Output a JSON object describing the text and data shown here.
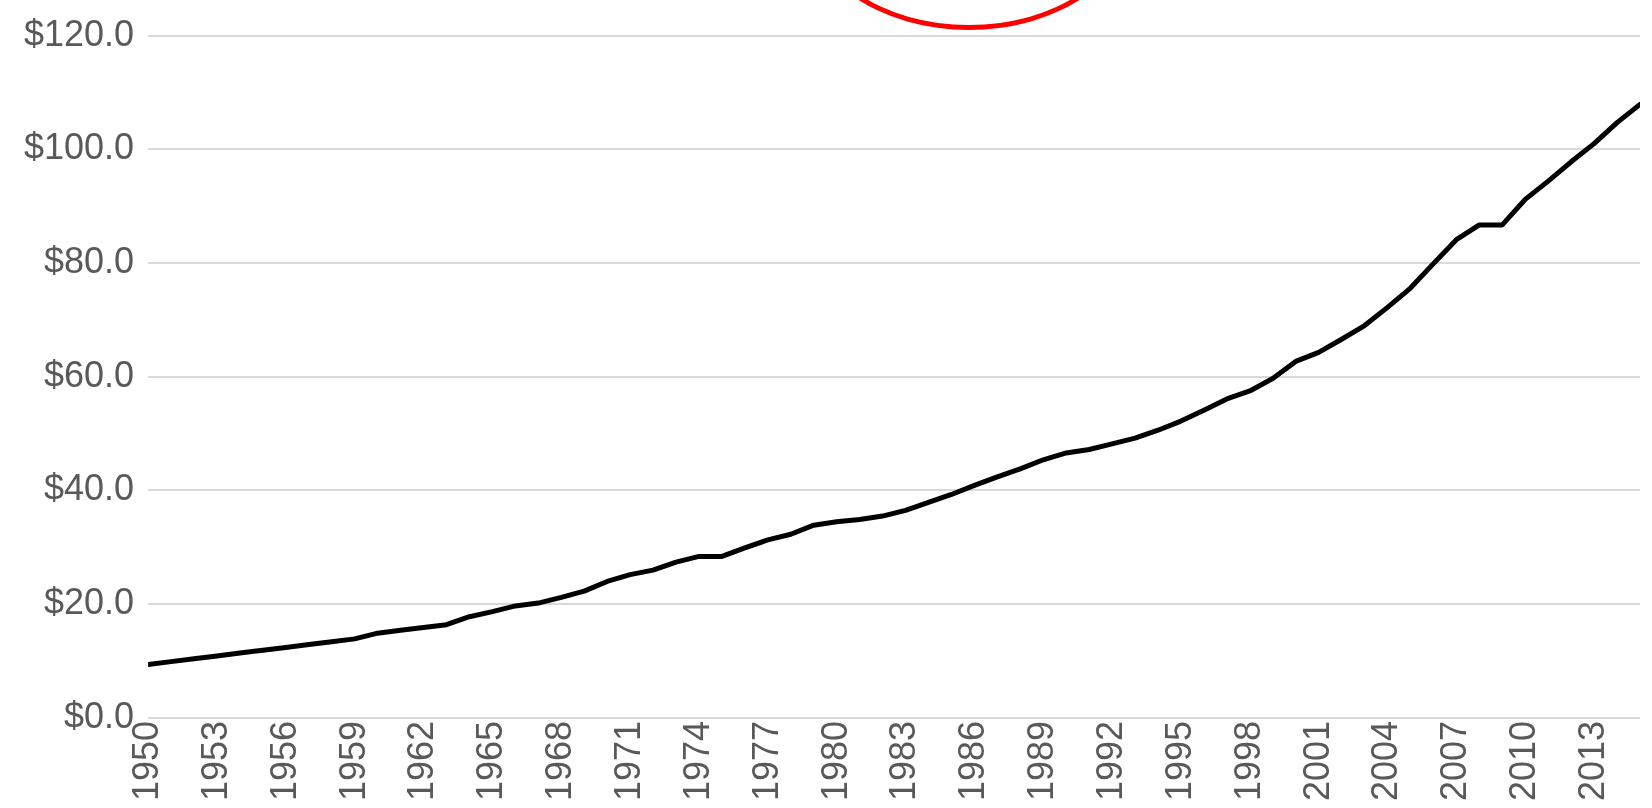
{
  "chart_data": {
    "type": "line",
    "x": [
      1950,
      1951,
      1952,
      1953,
      1954,
      1955,
      1956,
      1957,
      1958,
      1959,
      1960,
      1961,
      1962,
      1963,
      1964,
      1965,
      1966,
      1967,
      1968,
      1969,
      1970,
      1971,
      1972,
      1973,
      1974,
      1975,
      1976,
      1977,
      1978,
      1979,
      1980,
      1981,
      1982,
      1983,
      1984,
      1985,
      1986,
      1987,
      1988,
      1989,
      1990,
      1991,
      1992,
      1993,
      1994,
      1995,
      1996,
      1997,
      1998,
      1999,
      2000,
      2001,
      2002,
      2003,
      2004,
      2005,
      2006,
      2007,
      2008,
      2009,
      2010,
      2011,
      2012,
      2013,
      2014,
      2015
    ],
    "series": [
      {
        "color": "#000000",
        "values": [
          9.4,
          9.9,
          10.4,
          10.9,
          11.4,
          11.9,
          12.4,
          12.9,
          13.4,
          13.9,
          14.9,
          15.4,
          15.9,
          16.4,
          17.8,
          18.7,
          19.7,
          20.2,
          21.2,
          22.3,
          24.0,
          25.2,
          26.0,
          27.4,
          28.4,
          28.4,
          29.9,
          31.3,
          32.3,
          33.9,
          34.5,
          34.9,
          35.5,
          36.5,
          37.9,
          39.3,
          40.9,
          42.4,
          43.8,
          45.4,
          46.6,
          47.2,
          48.2,
          49.2,
          50.6,
          52.2,
          54.1,
          56.1,
          57.5,
          59.7,
          62.7,
          64.3,
          66.6,
          69.0,
          72.2,
          75.6,
          79.9,
          84.1,
          86.7,
          86.7,
          91.2,
          94.4,
          97.8,
          101.0,
          104.7,
          107.9
        ]
      }
    ],
    "xlim": [
      1950,
      2015
    ],
    "xticks": [
      1950,
      1953,
      1956,
      1959,
      1962,
      1965,
      1968,
      1971,
      1974,
      1977,
      1980,
      1983,
      1986,
      1989,
      1992,
      1995,
      1998,
      2001,
      2004,
      2007,
      2010,
      2013
    ],
    "ylim": [
      0,
      120
    ],
    "yticks": [
      {
        "value": 0,
        "label": "$0.0"
      },
      {
        "value": 20,
        "label": "$20.0"
      },
      {
        "value": 40,
        "label": "$40.0"
      },
      {
        "value": 60,
        "label": "$60.0"
      },
      {
        "value": 80,
        "label": "$80.0"
      },
      {
        "value": 100,
        "label": "$100.0"
      },
      {
        "value": 120,
        "label": "$120.0"
      }
    ],
    "grid": "y",
    "legend": false,
    "marker": "none",
    "line_style": "solid"
  }
}
